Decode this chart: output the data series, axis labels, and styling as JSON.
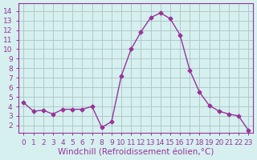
{
  "x": [
    0,
    1,
    2,
    3,
    4,
    5,
    6,
    7,
    8,
    9,
    10,
    11,
    12,
    13,
    14,
    15,
    16,
    17,
    18,
    19,
    20,
    21,
    22,
    23
  ],
  "y": [
    4.4,
    3.5,
    3.6,
    3.2,
    3.7,
    3.7,
    3.7,
    4.0,
    1.8,
    2.4,
    7.2,
    10.0,
    11.8,
    13.3,
    13.8,
    13.2,
    11.5,
    7.8,
    5.5,
    4.1,
    3.5,
    3.2,
    3.0,
    1.5
  ],
  "line_color": "#993399",
  "marker": "D",
  "marker_size": 2.5,
  "bg_color": "#d6f0f0",
  "grid_color": "#b0c8c8",
  "xlabel": "Windchill (Refroidissement éolien,°C)",
  "xlabel_fontsize": 7.5,
  "ylabel_ticks": [
    2,
    3,
    4,
    5,
    6,
    7,
    8,
    9,
    10,
    11,
    12,
    13,
    14
  ],
  "xlim": [
    -0.5,
    23.5
  ],
  "ylim": [
    1.2,
    14.8
  ],
  "tick_fontsize": 6.5,
  "spine_color": "#993399"
}
